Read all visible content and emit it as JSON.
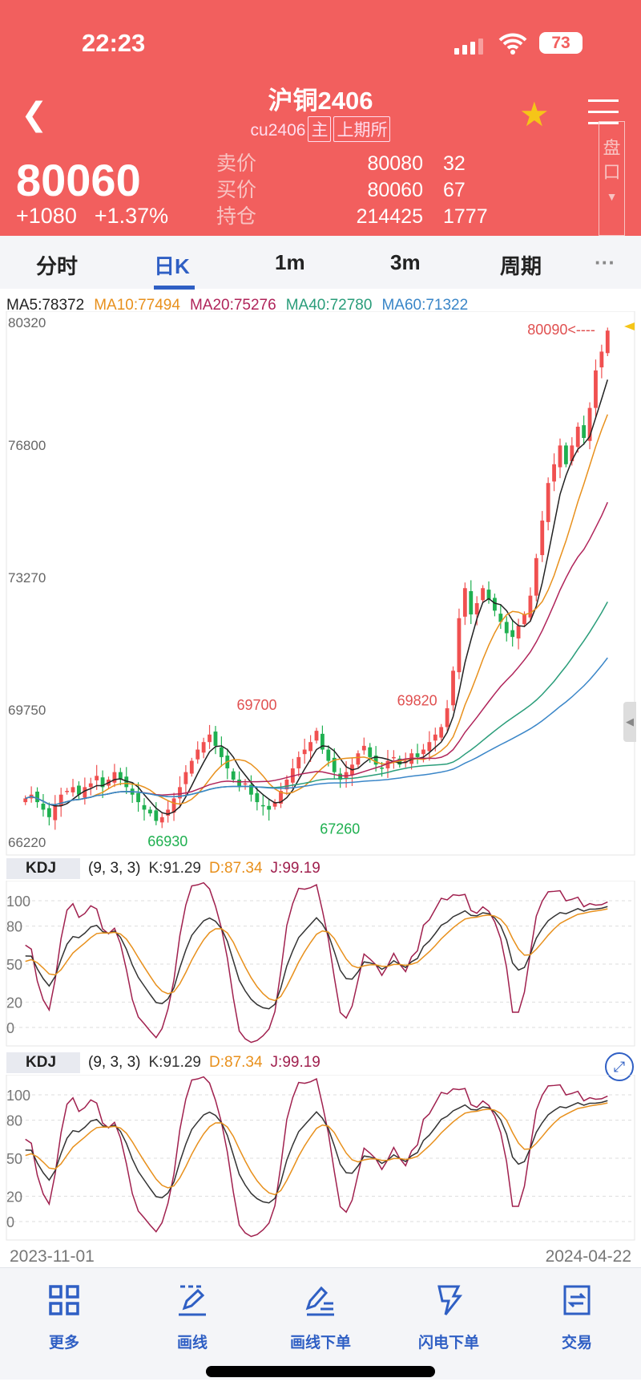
{
  "status": {
    "time": "22:23",
    "battery": "73"
  },
  "header": {
    "title": "沪铜2406",
    "code": "cu2406",
    "tag_main": "主",
    "exchange": "上期所",
    "price": "80060",
    "change": "+1080",
    "change_pct": "+1.37%",
    "orderbook": [
      {
        "label": "卖价",
        "price": "80080",
        "qty": "32"
      },
      {
        "label": "买价",
        "price": "80060",
        "qty": "67"
      },
      {
        "label": "持仓",
        "price": "214425",
        "qty": "1777"
      }
    ],
    "panel_toggle": "盘口"
  },
  "tabs": [
    {
      "label": "分时"
    },
    {
      "label": "日K",
      "active": true
    },
    {
      "label": "1m"
    },
    {
      "label": "3m"
    },
    {
      "label": "周期"
    },
    {
      "label": "···"
    }
  ],
  "ma_legend": [
    {
      "label": "MA5:78372",
      "color": "#222222"
    },
    {
      "label": "MA10:77494",
      "color": "#e8901c"
    },
    {
      "label": "MA20:75276",
      "color": "#b0245a"
    },
    {
      "label": "MA40:72780",
      "color": "#2a9d7a"
    },
    {
      "label": "MA60:71322",
      "color": "#3a86c8"
    }
  ],
  "kdj": {
    "name": "KDJ",
    "params": "(9, 3, 3)",
    "k": "K:91.29",
    "d": "D:87.34",
    "j": "J:99.19",
    "colors": {
      "k": "#333333",
      "d": "#e8901c",
      "j": "#a0204e"
    },
    "ticks": [
      "100",
      "80",
      "50",
      "20",
      "0"
    ]
  },
  "colors": {
    "up": "#f05050",
    "down": "#1fb050",
    "accent": "#2f5fc4",
    "header": "#f25f5e"
  },
  "chart_data": {
    "type": "candlestick",
    "y_ticks": [
      80320,
      76800,
      73270,
      69750,
      66220
    ],
    "ylim": [
      66220,
      80320
    ],
    "annotations": [
      {
        "label": "69700",
        "value": 69700,
        "color": "#e05050"
      },
      {
        "label": "69820",
        "value": 69820,
        "color": "#e05050"
      },
      {
        "label": "66930",
        "value": 66930,
        "color": "#1fb050"
      },
      {
        "label": "67260",
        "value": 67260,
        "color": "#1fb050"
      },
      {
        "label": "80090<----",
        "value": 80090,
        "color": "#e05050"
      }
    ],
    "x_start": "2023-11-01",
    "x_end": "2024-04-22",
    "close": [
      67600,
      67700,
      67500,
      67300,
      67100,
      67400,
      67700,
      67800,
      67900,
      67700,
      67900,
      68000,
      68200,
      67900,
      68100,
      68300,
      68100,
      67900,
      67700,
      67500,
      67300,
      67200,
      67000,
      67100,
      67300,
      67600,
      67900,
      68300,
      68600,
      68900,
      69100,
      69300,
      69000,
      68700,
      68400,
      68100,
      67900,
      68000,
      67700,
      67500,
      67400,
      67300,
      67500,
      67800,
      68100,
      68400,
      68700,
      68900,
      69100,
      69400,
      68900,
      68600,
      68300,
      68100,
      68300,
      68500,
      68800,
      69000,
      68700,
      68500,
      68400,
      68600,
      68700,
      68500,
      68600,
      68800,
      68700,
      68900,
      69100,
      69300,
      69500,
      70000,
      71000,
      72400,
      73200,
      72500,
      72800,
      73200,
      72900,
      72600,
      72300,
      72000,
      71900,
      72200,
      72500,
      73000,
      74000,
      75000,
      76000,
      76500,
      77000,
      76500,
      77000,
      77500,
      77200,
      78000,
      79000,
      79500,
      80060
    ]
  },
  "nav": [
    {
      "label": "更多",
      "icon": "grid-icon"
    },
    {
      "label": "画线",
      "icon": "pen-draw-icon"
    },
    {
      "label": "画线下单",
      "icon": "pen-order-icon"
    },
    {
      "label": "闪电下单",
      "icon": "lightning-icon"
    },
    {
      "label": "交易",
      "icon": "exchange-icon"
    }
  ],
  "dates": {
    "start": "2023-11-01",
    "end": "2024-04-22"
  }
}
